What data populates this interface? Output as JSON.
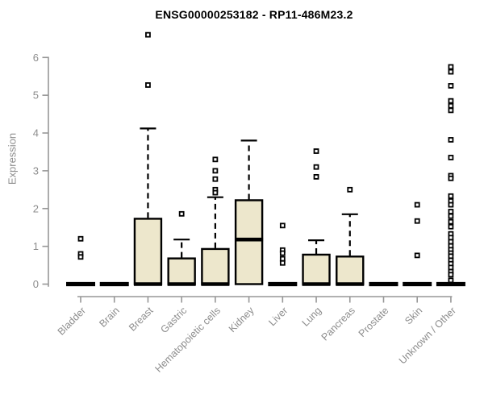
{
  "title": "ENSG00000253182 - RP11-486M23.2",
  "colors": {
    "box_fill": "#EDE7CC",
    "box_stroke": "#000000",
    "axis_color": "#979797",
    "tick_label_color": "#8d8d8d",
    "title_color": "#000000",
    "background": "#ffffff"
  },
  "chart_data": {
    "type": "boxplot",
    "title": "ENSG00000253182 - RP11-486M23.2",
    "xlabel": "",
    "ylabel": "Expression",
    "ylim": [
      0,
      6
    ],
    "yticks": [
      0,
      1,
      2,
      3,
      4,
      5,
      6
    ],
    "grid": false,
    "legend": false,
    "categories": [
      "Bladder",
      "Brain",
      "Breast",
      "Gastric",
      "Hematopoietic cells",
      "Kidney",
      "Liver",
      "Lung",
      "Pancreas",
      "Prostate",
      "Skin",
      "Unknown / Other"
    ],
    "boxes": [
      {
        "category": "Bladder",
        "whisker_low": 0,
        "q1": 0,
        "median": 0,
        "q3": 0,
        "whisker_high": 0,
        "outliers": [
          1.2,
          0.8,
          0.72
        ]
      },
      {
        "category": "Brain",
        "whisker_low": 0,
        "q1": 0,
        "median": 0,
        "q3": 0,
        "whisker_high": 0,
        "outliers": []
      },
      {
        "category": "Breast",
        "whisker_low": 0,
        "q1": 0,
        "median": 0,
        "q3": 1.73,
        "whisker_high": 4.12,
        "outliers": [
          6.6,
          5.27
        ]
      },
      {
        "category": "Gastric",
        "whisker_low": 0,
        "q1": 0,
        "median": 0,
        "q3": 0.68,
        "whisker_high": 1.18,
        "outliers": [
          1.86
        ]
      },
      {
        "category": "Hematopoietic cells",
        "whisker_low": 0,
        "q1": 0,
        "median": 0,
        "q3": 0.93,
        "whisker_high": 2.3,
        "outliers": [
          3.3,
          3.0,
          2.78,
          2.5,
          2.42
        ]
      },
      {
        "category": "Kidney",
        "whisker_low": 0,
        "q1": 0,
        "median": 1.18,
        "q3": 2.22,
        "whisker_high": 3.8,
        "outliers": []
      },
      {
        "category": "Liver",
        "whisker_low": 0,
        "q1": 0,
        "median": 0,
        "q3": 0,
        "whisker_high": 0,
        "outliers": [
          1.55,
          0.9,
          0.82,
          0.67,
          0.56
        ]
      },
      {
        "category": "Lung",
        "whisker_low": 0,
        "q1": 0,
        "median": 0,
        "q3": 0.78,
        "whisker_high": 1.16,
        "outliers": [
          3.52,
          3.1,
          2.84
        ]
      },
      {
        "category": "Pancreas",
        "whisker_low": 0,
        "q1": 0,
        "median": 0,
        "q3": 0.73,
        "whisker_high": 1.85,
        "outliers": [
          2.5
        ]
      },
      {
        "category": "Prostate",
        "whisker_low": 0,
        "q1": 0,
        "median": 0,
        "q3": 0,
        "whisker_high": 0,
        "outliers": []
      },
      {
        "category": "Skin",
        "whisker_low": 0,
        "q1": 0,
        "median": 0,
        "q3": 0,
        "whisker_high": 0,
        "outliers": [
          2.1,
          1.67,
          0.76
        ]
      },
      {
        "category": "Unknown / Other",
        "whisker_low": 0,
        "q1": 0,
        "median": 0,
        "q3": 0,
        "whisker_high": 0,
        "outliers": [
          5.75,
          5.62,
          5.25,
          4.85,
          4.72,
          4.6,
          3.82,
          3.35,
          2.87,
          2.8,
          2.33,
          2.2,
          2.1,
          1.92,
          1.8,
          1.65,
          1.52,
          1.33,
          1.23,
          1.12,
          1.01,
          0.91,
          0.82,
          0.74,
          0.63,
          0.54,
          0.44,
          0.33,
          0.25,
          0.1
        ]
      }
    ]
  }
}
